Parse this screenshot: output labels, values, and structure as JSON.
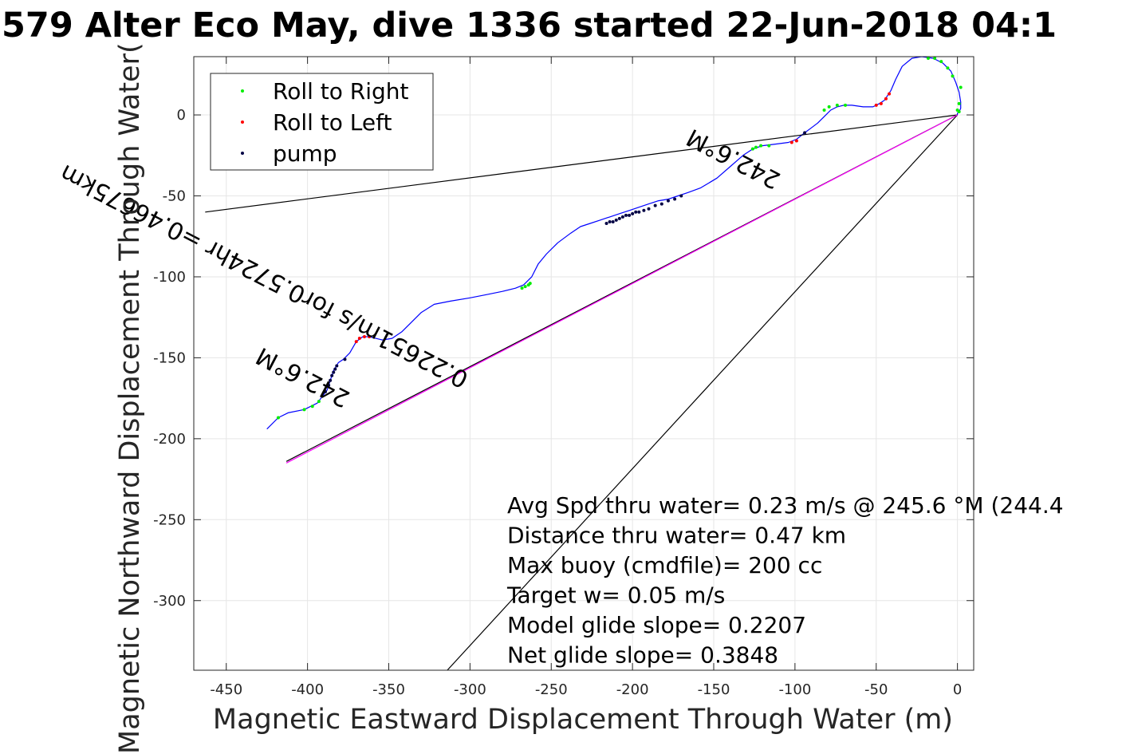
{
  "chart_data": {
    "type": "line",
    "title": "579 Alter Eco May, dive 1336 started 22-Jun-2018 04:1",
    "xlabel": "Magnetic Eastward Displacement Through Water (m)",
    "ylabel": "Magnetic Northward Displacement Through Water(",
    "xlim": [
      -470,
      10
    ],
    "ylim": [
      -343,
      36
    ],
    "xticks": [
      -450,
      -400,
      -350,
      -300,
      -250,
      -200,
      -150,
      -100,
      -50,
      0
    ],
    "yticks": [
      -300,
      -250,
      -200,
      -150,
      -100,
      -50,
      0
    ],
    "xtick_labels": [
      "-450",
      "-400",
      "-350",
      "-300",
      "-250",
      "-200",
      "-150",
      "-100",
      "-50",
      "0"
    ],
    "ytick_labels": [
      "-300",
      "-250",
      "-200",
      "-150",
      "-100",
      "-50",
      "0"
    ],
    "grid": true,
    "legend": {
      "placement": "top-left",
      "entries": [
        {
          "label": "Roll to Right",
          "color": "#00ee00"
        },
        {
          "label": "Roll to Left",
          "color": "#ff0000"
        },
        {
          "label": "pump",
          "color": "#000044"
        }
      ]
    },
    "series": [
      {
        "style": "track",
        "color": "#0000ff",
        "x": [
          -425,
          -418,
          -412,
          -402,
          -394,
          -388,
          -384,
          -381,
          -378,
          -374,
          -370,
          -366,
          -362,
          -358,
          -354,
          -348,
          -342,
          -336,
          -330,
          -322,
          -312,
          -300,
          -290,
          -280,
          -272,
          -267,
          -262,
          -258,
          -253,
          -246,
          -238,
          -232,
          -226,
          -220,
          -214,
          -208,
          -202,
          -196,
          -190,
          -184,
          -178,
          -172,
          -166,
          -158,
          -148,
          -140,
          -132,
          -126,
          -120,
          -112,
          -104,
          -99,
          -94,
          -90,
          -86,
          -82,
          -78,
          -74,
          -70,
          -65,
          -58,
          -52,
          -48,
          -45,
          -43,
          -41,
          -38,
          -34,
          -28,
          -22,
          -15,
          -9,
          -4,
          -1,
          1,
          2,
          2,
          1,
          0,
          0
        ],
        "y": [
          -194,
          -187,
          -184,
          -182,
          -178,
          -170,
          -158,
          -153,
          -151,
          -147,
          -140,
          -137,
          -137,
          -138,
          -139,
          -138,
          -134,
          -128,
          -122,
          -117,
          -115,
          -113,
          -111,
          -109,
          -107,
          -105,
          -100,
          -92,
          -86,
          -79,
          -73,
          -69,
          -67,
          -65,
          -63,
          -61,
          -59,
          -57,
          -55,
          -53,
          -52,
          -50,
          -48,
          -45,
          -39,
          -32,
          -25,
          -21,
          -19,
          -18,
          -17,
          -15,
          -11,
          -8,
          -5,
          -1,
          3,
          5,
          6,
          6,
          5,
          5,
          7,
          9,
          12,
          15,
          22,
          30,
          35,
          36,
          35,
          32,
          27,
          20,
          14,
          8,
          4,
          2,
          1,
          0
        ]
      },
      {
        "style": "reference",
        "color": "#000000",
        "x": [
          0,
          -463
        ],
        "y": [
          0,
          -60
        ]
      },
      {
        "style": "reference",
        "color": "#000000",
        "x": [
          0,
          -314
        ],
        "y": [
          0,
          -343
        ]
      },
      {
        "style": "reference",
        "color": "#000000",
        "x": [
          0,
          -413
        ],
        "y": [
          0,
          -214
        ]
      },
      {
        "style": "reference",
        "color": "#ff00ff",
        "x": [
          0,
          -413
        ],
        "y": [
          0,
          -215
        ]
      }
    ],
    "markers": {
      "roll_right": {
        "color": "#00ee00",
        "x": [
          -418,
          -402,
          -397,
          -393,
          -268,
          -266,
          -264,
          -263,
          -126,
          -124,
          -121,
          -116,
          -82,
          -79,
          -74,
          -69,
          -18,
          -14,
          -10,
          -6,
          -3,
          2,
          1,
          0,
          1
        ],
        "y": [
          -187,
          -182,
          -180,
          -177,
          -107,
          -106,
          -105,
          -104,
          -21,
          -20,
          -19,
          -19,
          3,
          5,
          6,
          6,
          35,
          35,
          33,
          29,
          24,
          17,
          7,
          3,
          2
        ]
      },
      "roll_left": {
        "color": "#ff0000",
        "x": [
          -370,
          -368,
          -365,
          -362,
          -102,
          -99,
          -50,
          -47,
          -44,
          -42
        ],
        "y": [
          -140,
          -138,
          -137,
          -137,
          -17,
          -16,
          6,
          7,
          10,
          13
        ]
      },
      "pump": {
        "color": "#000044",
        "x": [
          -389,
          -387,
          -386,
          -385,
          -384,
          -383,
          -382,
          -377,
          -216,
          -214,
          -212,
          -210,
          -208,
          -206,
          -204,
          -202,
          -200,
          -198,
          -196,
          -193,
          -190,
          -186,
          -182,
          -178,
          -174,
          -170,
          -94
        ],
        "y": [
          -171,
          -167,
          -164,
          -161,
          -159,
          -157,
          -155,
          -151,
          -67,
          -66,
          -66,
          -65,
          -64,
          -63,
          -62,
          -62,
          -61,
          -60,
          -60,
          -59,
          -58,
          -56,
          -55,
          -53,
          -52,
          -50,
          -11
        ]
      }
    },
    "annotations": [
      {
        "text": "242.6°M",
        "x": -373,
        "y": -172,
        "angle_deg": 207.4
      },
      {
        "text": "0.22651m/s for0.5724hr =0.46675km",
        "x": -300,
        "y": -160,
        "angle_deg": 207.4
      },
      {
        "text": "242.6°M",
        "x": -108,
        "y": -37,
        "angle_deg": 207.4
      }
    ],
    "notes": [
      "Avg Spd thru water=  0.23 m/s @ 245.6 °M (244.4",
      "Distance thru water=  0.47 km",
      "Max buoy (cmdfile)= 200 cc",
      "Target w= 0.05 m/s",
      "Model glide slope= 0.2207",
      "Net glide slope= 0.3848"
    ]
  }
}
